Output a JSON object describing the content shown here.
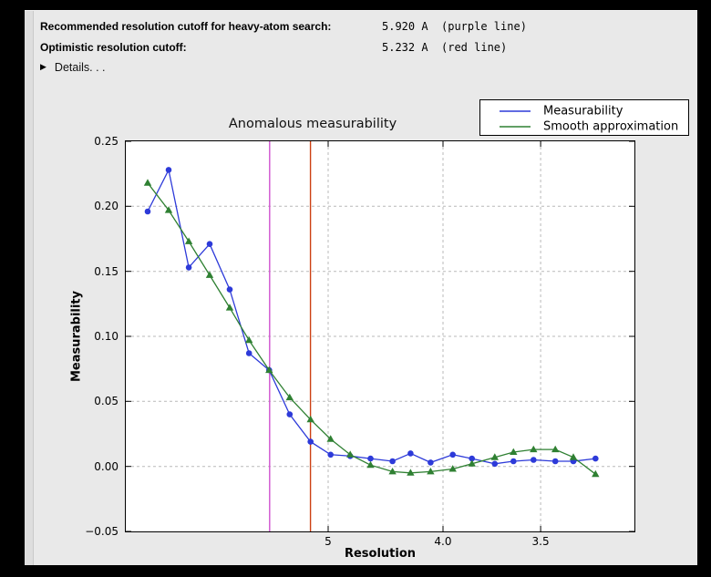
{
  "header": {
    "rows": [
      {
        "label": "Recommended resolution cutoff for heavy-atom search:",
        "value": "5.920 A",
        "note": "(purple line)"
      },
      {
        "label": "Optimistic resolution cutoff:",
        "value": "5.232 A",
        "note": "(red line)"
      }
    ],
    "disclosure_icon": "▶",
    "details_label": "Details. . ."
  },
  "chart_data": {
    "type": "line",
    "title": "Anomalous measurability",
    "xlabel": "Resolution",
    "ylabel": "Measurability",
    "x_scale": "linear in 1/d^2; resolution (Angstrom) decreases left to right",
    "grid": true,
    "legend_position": "top-right above axes",
    "xlim_s": [
      0.000346,
      0.100018
    ],
    "ylim": [
      -0.05,
      0.25
    ],
    "x_ticks": [
      {
        "label": "5",
        "d": 5.0
      },
      {
        "label": "4.0",
        "d": 4.0
      },
      {
        "label": "3.5",
        "d": 3.5
      }
    ],
    "y_ticks": [
      {
        "label": "0.25",
        "v": 0.25
      },
      {
        "label": "0.20",
        "v": 0.2
      },
      {
        "label": "0.15",
        "v": 0.15
      },
      {
        "label": "0.10",
        "v": 0.1
      },
      {
        "label": "0.05",
        "v": 0.05
      },
      {
        "label": "0.00",
        "v": 0.0
      },
      {
        "label": "−0.05",
        "v": -0.05
      }
    ],
    "resolution_A": [
      14.7,
      10.7,
      8.88,
      7.72,
      6.95,
      6.39,
      5.93,
      5.55,
      5.23,
      4.97,
      4.75,
      4.55,
      4.36,
      4.22,
      4.08,
      3.94,
      3.83,
      3.71,
      3.62,
      3.53,
      3.44,
      3.37,
      3.29
    ],
    "series": [
      {
        "name": "Measurability",
        "color": "#2d3ad9",
        "marker": "circle",
        "values": [
          0.196,
          0.228,
          0.153,
          0.171,
          0.136,
          0.087,
          0.074,
          0.04,
          0.019,
          0.009,
          0.008,
          0.006,
          0.004,
          0.01,
          0.003,
          0.009,
          0.006,
          0.002,
          0.004,
          0.005,
          0.004,
          0.004,
          0.006
        ]
      },
      {
        "name": "Smooth approximation",
        "color": "#2f8032",
        "marker": "triangle",
        "values": [
          0.218,
          0.197,
          0.173,
          0.147,
          0.122,
          0.097,
          0.074,
          0.053,
          0.036,
          0.021,
          0.009,
          0.001,
          -0.004,
          -0.005,
          -0.004,
          -0.002,
          0.002,
          0.007,
          0.011,
          0.013,
          0.013,
          0.007,
          -0.006
        ]
      }
    ],
    "vlines": [
      {
        "d": 5.92,
        "color": "#cf52cf",
        "label": "purple line"
      },
      {
        "d": 5.232,
        "color": "#cc3f12",
        "label": "red line"
      }
    ]
  }
}
